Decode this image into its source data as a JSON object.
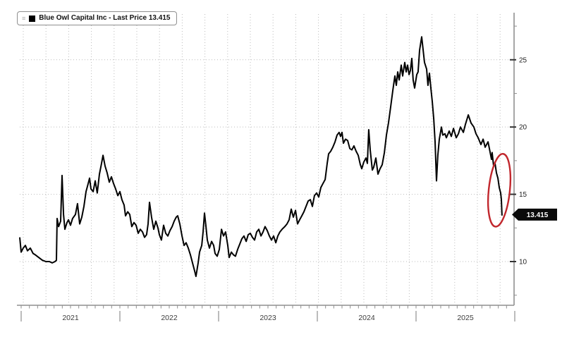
{
  "legend": {
    "label": "Blue Owl Capital Inc - Last Price 13.415",
    "series_color": "#000000"
  },
  "chart_data": {
    "type": "line",
    "title": "Blue Owl Capital Inc - Last Price",
    "security": "Blue Owl Capital Inc",
    "last_price": 13.415,
    "last_price_label": "13.415",
    "x_unit": "decimal years since 2021-01-01",
    "xlim": [
      -0.014,
      4.986
    ],
    "ylim": [
      6.75,
      28.5
    ],
    "x_year_labels": [
      "2021",
      "2022",
      "2023",
      "2024",
      "2025"
    ],
    "y_major_ticks": [
      10,
      15,
      20,
      25
    ],
    "y_minor_ticks": [
      7.5,
      12.5,
      17.5,
      22.5,
      27.5
    ],
    "grid": true,
    "legend_position": "top-left",
    "annotation": {
      "shape": "ellipse",
      "cx_year": 4.843,
      "cy_price": 15.3,
      "rx_years": 0.107,
      "ry_price": 2.72,
      "rotation_deg": 6,
      "color": "#c1272d"
    },
    "colors": {
      "line": "#000000",
      "grid": "#bcbcbc",
      "axis": "#8f8f8f",
      "tick_text": "#222222",
      "year_text": "#3d3d3d",
      "tag_bg": "#0a0a0a",
      "tag_text": "#ffffff"
    },
    "points": [
      [
        -0.014,
        11.8
      ],
      [
        0,
        10.7
      ],
      [
        0.021,
        11
      ],
      [
        0.043,
        11.2
      ],
      [
        0.064,
        10.8
      ],
      [
        0.093,
        11
      ],
      [
        0.121,
        10.6
      ],
      [
        0.143,
        10.5
      ],
      [
        0.179,
        10.3
      ],
      [
        0.214,
        10.1
      ],
      [
        0.25,
        10
      ],
      [
        0.286,
        10
      ],
      [
        0.314,
        9.9
      ],
      [
        0.343,
        10
      ],
      [
        0.357,
        10.1
      ],
      [
        0.364,
        13.2
      ],
      [
        0.379,
        12.6
      ],
      [
        0.4,
        13
      ],
      [
        0.414,
        16.4
      ],
      [
        0.429,
        13.5
      ],
      [
        0.443,
        12.4
      ],
      [
        0.464,
        12.9
      ],
      [
        0.479,
        13.1
      ],
      [
        0.5,
        12.7
      ],
      [
        0.521,
        13.2
      ],
      [
        0.55,
        13.5
      ],
      [
        0.571,
        14.3
      ],
      [
        0.593,
        12.8
      ],
      [
        0.614,
        13.3
      ],
      [
        0.636,
        14.1
      ],
      [
        0.657,
        15.2
      ],
      [
        0.679,
        15.8
      ],
      [
        0.693,
        16.2
      ],
      [
        0.707,
        15.4
      ],
      [
        0.729,
        15.2
      ],
      [
        0.75,
        16
      ],
      [
        0.771,
        15.1
      ],
      [
        0.793,
        16.5
      ],
      [
        0.814,
        17.3
      ],
      [
        0.829,
        17.9
      ],
      [
        0.85,
        17.1
      ],
      [
        0.871,
        16.6
      ],
      [
        0.893,
        15.9
      ],
      [
        0.914,
        16.3
      ],
      [
        0.936,
        15.8
      ],
      [
        0.957,
        15.4
      ],
      [
        0.979,
        14.9
      ],
      [
        1,
        15.2
      ],
      [
        1.021,
        14.6
      ],
      [
        1.043,
        14.2
      ],
      [
        1.057,
        13.4
      ],
      [
        1.079,
        13.7
      ],
      [
        1.1,
        13.5
      ],
      [
        1.121,
        12.6
      ],
      [
        1.143,
        12.9
      ],
      [
        1.164,
        12.7
      ],
      [
        1.186,
        12.1
      ],
      [
        1.207,
        12.4
      ],
      [
        1.229,
        12.2
      ],
      [
        1.25,
        11.8
      ],
      [
        1.271,
        12
      ],
      [
        1.286,
        12.8
      ],
      [
        1.3,
        14.4
      ],
      [
        1.321,
        13.3
      ],
      [
        1.343,
        12.4
      ],
      [
        1.364,
        13
      ],
      [
        1.386,
        12.5
      ],
      [
        1.4,
        12
      ],
      [
        1.421,
        11.6
      ],
      [
        1.443,
        12.7
      ],
      [
        1.464,
        12.1
      ],
      [
        1.486,
        11.9
      ],
      [
        1.507,
        12.3
      ],
      [
        1.529,
        12.6
      ],
      [
        1.55,
        13
      ],
      [
        1.571,
        13.3
      ],
      [
        1.586,
        13.4
      ],
      [
        1.607,
        12.8
      ],
      [
        1.629,
        11.9
      ],
      [
        1.65,
        11.2
      ],
      [
        1.671,
        11.4
      ],
      [
        1.693,
        11
      ],
      [
        1.714,
        10.5
      ],
      [
        1.736,
        9.9
      ],
      [
        1.757,
        9.3
      ],
      [
        1.771,
        8.9
      ],
      [
        1.793,
        9.9
      ],
      [
        1.807,
        10.7
      ],
      [
        1.829,
        11.2
      ],
      [
        1.843,
        12.2
      ],
      [
        1.857,
        13.6
      ],
      [
        1.871,
        12.7
      ],
      [
        1.886,
        11.6
      ],
      [
        1.907,
        11
      ],
      [
        1.929,
        11.5
      ],
      [
        1.95,
        11.2
      ],
      [
        1.964,
        10.6
      ],
      [
        1.986,
        10.4
      ],
      [
        2.007,
        10.9
      ],
      [
        2.029,
        12.4
      ],
      [
        2.05,
        11.9
      ],
      [
        2.071,
        12.2
      ],
      [
        2.093,
        11.2
      ],
      [
        2.107,
        10.3
      ],
      [
        2.129,
        10.7
      ],
      [
        2.15,
        10.5
      ],
      [
        2.171,
        10.4
      ],
      [
        2.193,
        10.9
      ],
      [
        2.214,
        11.3
      ],
      [
        2.236,
        11.7
      ],
      [
        2.257,
        11.9
      ],
      [
        2.279,
        11.5
      ],
      [
        2.3,
        12
      ],
      [
        2.321,
        12.1
      ],
      [
        2.343,
        11.8
      ],
      [
        2.364,
        11.6
      ],
      [
        2.386,
        12.2
      ],
      [
        2.407,
        12.4
      ],
      [
        2.429,
        11.9
      ],
      [
        2.45,
        12.2
      ],
      [
        2.471,
        12.6
      ],
      [
        2.493,
        12.3
      ],
      [
        2.514,
        11.9
      ],
      [
        2.536,
        11.6
      ],
      [
        2.557,
        11.9
      ],
      [
        2.579,
        11.4
      ],
      [
        2.6,
        11.9
      ],
      [
        2.621,
        12.2
      ],
      [
        2.643,
        12.4
      ],
      [
        2.671,
        12.6
      ],
      [
        2.693,
        12.8
      ],
      [
        2.714,
        13.1
      ],
      [
        2.736,
        13.9
      ],
      [
        2.757,
        13.3
      ],
      [
        2.779,
        13.8
      ],
      [
        2.8,
        12.8
      ],
      [
        2.821,
        13.1
      ],
      [
        2.843,
        13.4
      ],
      [
        2.864,
        13.7
      ],
      [
        2.886,
        14.1
      ],
      [
        2.907,
        14.5
      ],
      [
        2.929,
        14.6
      ],
      [
        2.95,
        14.1
      ],
      [
        2.971,
        14.9
      ],
      [
        2.993,
        15.1
      ],
      [
        3.014,
        14.8
      ],
      [
        3.036,
        15.5
      ],
      [
        3.057,
        15.8
      ],
      [
        3.079,
        16.1
      ],
      [
        3.1,
        17.3
      ],
      [
        3.114,
        18
      ],
      [
        3.136,
        18.2
      ],
      [
        3.157,
        18.5
      ],
      [
        3.179,
        18.9
      ],
      [
        3.2,
        19.4
      ],
      [
        3.221,
        19.6
      ],
      [
        3.236,
        19.3
      ],
      [
        3.25,
        19.6
      ],
      [
        3.264,
        18.8
      ],
      [
        3.286,
        19.1
      ],
      [
        3.307,
        19
      ],
      [
        3.329,
        18.4
      ],
      [
        3.35,
        18.3
      ],
      [
        3.371,
        18.6
      ],
      [
        3.393,
        18.2
      ],
      [
        3.414,
        17.9
      ],
      [
        3.436,
        17.2
      ],
      [
        3.45,
        16.9
      ],
      [
        3.471,
        17.4
      ],
      [
        3.493,
        17.7
      ],
      [
        3.507,
        17.3
      ],
      [
        3.521,
        19.8
      ],
      [
        3.536,
        18.3
      ],
      [
        3.557,
        16.8
      ],
      [
        3.571,
        17
      ],
      [
        3.593,
        17.7
      ],
      [
        3.614,
        16.5
      ],
      [
        3.636,
        16.9
      ],
      [
        3.657,
        17.2
      ],
      [
        3.679,
        18.1
      ],
      [
        3.7,
        19.4
      ],
      [
        3.721,
        20.3
      ],
      [
        3.743,
        21.5
      ],
      [
        3.764,
        22.7
      ],
      [
        3.786,
        23.8
      ],
      [
        3.8,
        23.1
      ],
      [
        3.814,
        24.1
      ],
      [
        3.829,
        23.5
      ],
      [
        3.85,
        24.6
      ],
      [
        3.864,
        23.8
      ],
      [
        3.886,
        24.8
      ],
      [
        3.9,
        24.1
      ],
      [
        3.914,
        24.6
      ],
      [
        3.929,
        23.9
      ],
      [
        3.943,
        24.2
      ],
      [
        3.957,
        25.1
      ],
      [
        3.971,
        23.5
      ],
      [
        3.986,
        22.9
      ],
      [
        4.007,
        23.9
      ],
      [
        4.021,
        24.1
      ],
      [
        4.036,
        25.7
      ],
      [
        4.057,
        26.7
      ],
      [
        4.071,
        25.8
      ],
      [
        4.086,
        24.8
      ],
      [
        4.107,
        24.3
      ],
      [
        4.121,
        23.1
      ],
      [
        4.136,
        24
      ],
      [
        4.15,
        22.9
      ],
      [
        4.164,
        21.9
      ],
      [
        4.179,
        20.6
      ],
      [
        4.193,
        18.9
      ],
      [
        4.207,
        16
      ],
      [
        4.221,
        17.9
      ],
      [
        4.236,
        19.1
      ],
      [
        4.257,
        20
      ],
      [
        4.271,
        19.4
      ],
      [
        4.293,
        19.5
      ],
      [
        4.307,
        19.2
      ],
      [
        4.336,
        19.7
      ],
      [
        4.357,
        19.3
      ],
      [
        4.379,
        19.9
      ],
      [
        4.407,
        19.2
      ],
      [
        4.429,
        19.5
      ],
      [
        4.45,
        20
      ],
      [
        4.479,
        19.6
      ],
      [
        4.5,
        20.2
      ],
      [
        4.529,
        20.9
      ],
      [
        4.557,
        20.3
      ],
      [
        4.586,
        20
      ],
      [
        4.607,
        19.5
      ],
      [
        4.629,
        19.2
      ],
      [
        4.657,
        18.7
      ],
      [
        4.679,
        19.1
      ],
      [
        4.7,
        18.5
      ],
      [
        4.729,
        18.9
      ],
      [
        4.743,
        18.4
      ],
      [
        4.764,
        17.6
      ],
      [
        4.771,
        18.1
      ],
      [
        4.786,
        17.1
      ],
      [
        4.8,
        17.3
      ],
      [
        4.814,
        16.6
      ],
      [
        4.829,
        16.2
      ],
      [
        4.843,
        15.5
      ],
      [
        4.857,
        15.1
      ],
      [
        4.864,
        14.6
      ],
      [
        4.871,
        13.415
      ]
    ]
  }
}
